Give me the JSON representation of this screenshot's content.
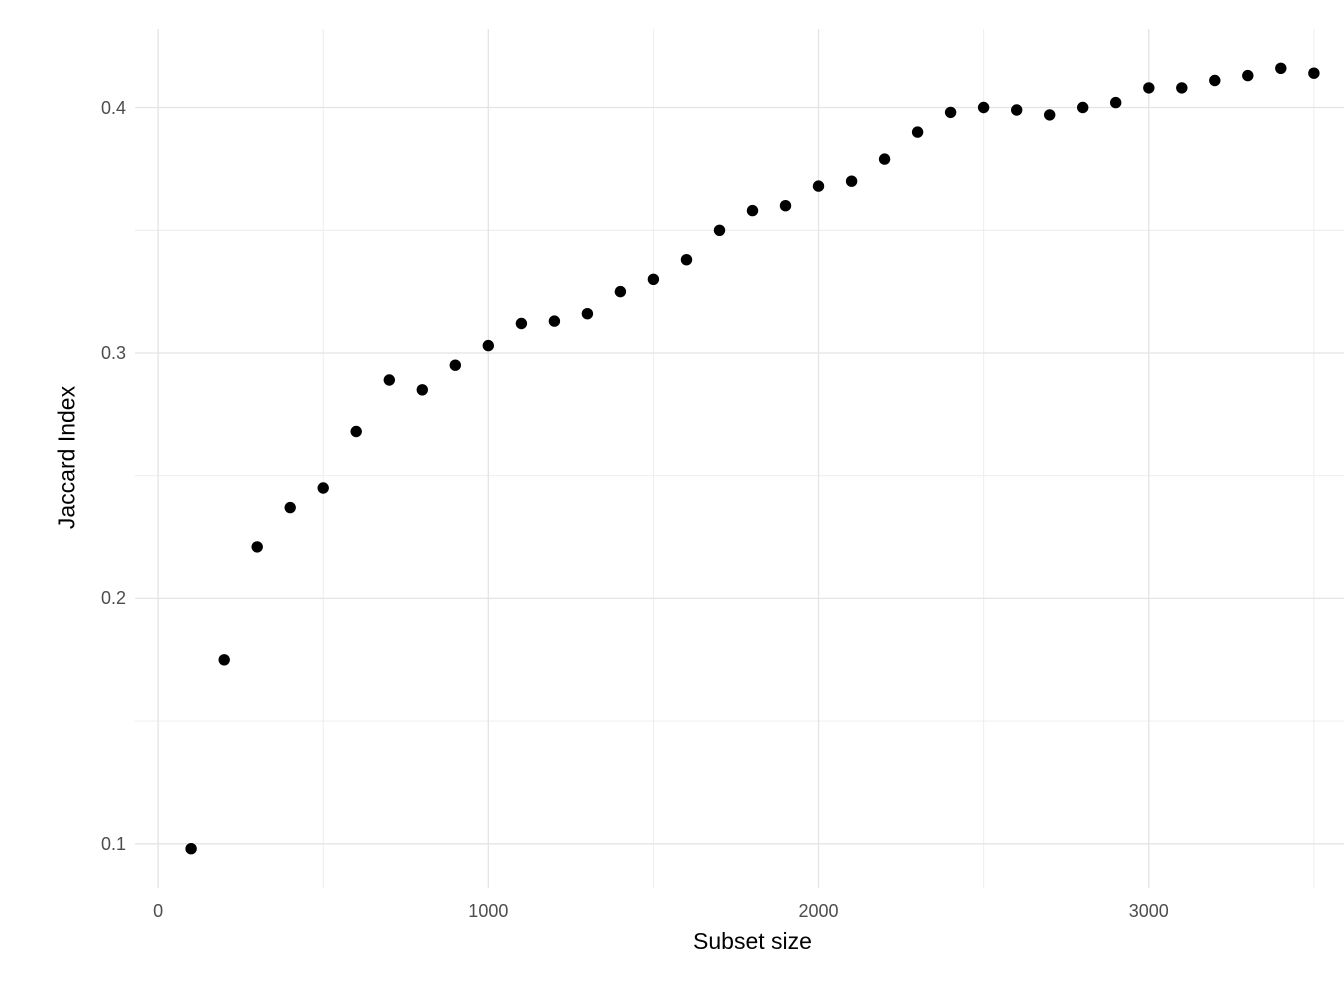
{
  "chart_data": {
    "type": "scatter",
    "title": "",
    "xlabel": "Subset size",
    "ylabel": "Jaccard Index",
    "x": [
      100,
      200,
      300,
      400,
      500,
      600,
      700,
      800,
      900,
      1000,
      1100,
      1200,
      1300,
      1400,
      1500,
      1600,
      1700,
      1800,
      1900,
      2000,
      2100,
      2200,
      2300,
      2400,
      2500,
      2600,
      2700,
      2800,
      2900,
      3000,
      3100,
      3200,
      3300,
      3400,
      3500
    ],
    "y": [
      0.098,
      0.175,
      0.221,
      0.237,
      0.245,
      0.268,
      0.289,
      0.285,
      0.295,
      0.303,
      0.312,
      0.313,
      0.316,
      0.325,
      0.33,
      0.338,
      0.35,
      0.358,
      0.36,
      0.368,
      0.37,
      0.379,
      0.39,
      0.398,
      0.4,
      0.399,
      0.397,
      0.4,
      0.402,
      0.408,
      0.408,
      0.411,
      0.413,
      0.416,
      0.414
    ],
    "xlim": [
      -70,
      3670
    ],
    "ylim": [
      0.082,
      0.432
    ],
    "x_major_ticks": [
      0,
      1000,
      2000,
      3000
    ],
    "x_major_labels": [
      "0",
      "1000",
      "2000",
      "3000"
    ],
    "x_minor_ticks": [
      500,
      1500,
      2500,
      3500
    ],
    "y_major_ticks": [
      0.1,
      0.2,
      0.3,
      0.4
    ],
    "y_major_labels": [
      "0.1",
      "0.2",
      "0.3",
      "0.4"
    ],
    "y_minor_ticks": [
      0.15,
      0.25,
      0.35
    ],
    "grid": true,
    "legend_position": "none",
    "point_color": "#000000",
    "major_grid_color": "#e4e4e4",
    "minor_grid_color": "#ececec",
    "tick_label_color": "#4d4d4d",
    "axis_title_color": "#000000",
    "background_color": "#ffffff"
  }
}
